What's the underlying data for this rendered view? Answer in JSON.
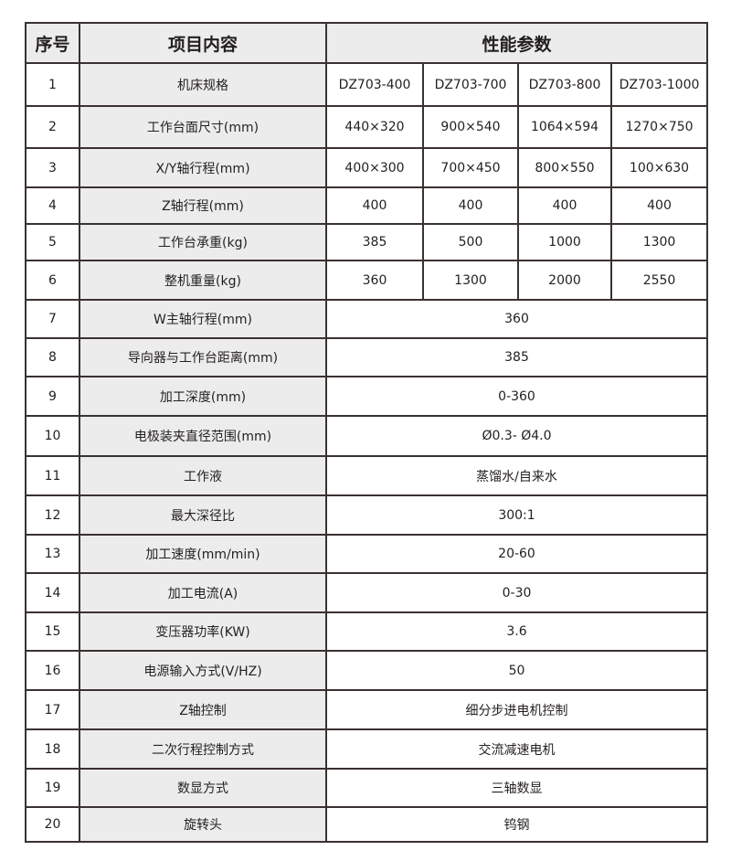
{
  "header": {
    "index": "序号",
    "item": "项目内容",
    "spec": "性能参数"
  },
  "rows": [
    {
      "no": "1",
      "item": "机床规格",
      "values": [
        "DZ703-400",
        "DZ703-700",
        "DZ703-800",
        "DZ703-1000"
      ]
    },
    {
      "no": "2",
      "item": "工作台面尺寸(mm)",
      "values": [
        "440×320",
        "900×540",
        "1064×594",
        "1270×750"
      ]
    },
    {
      "no": "3",
      "item": "X/Y轴行程(mm)",
      "values": [
        "400×300",
        "700×450",
        "800×550",
        "100×630"
      ]
    },
    {
      "no": "4",
      "item": "Z轴行程(mm)",
      "values": [
        "400",
        "400",
        "400",
        "400"
      ]
    },
    {
      "no": "5",
      "item": "工作台承重(kg)",
      "values": [
        "385",
        "500",
        "1000",
        "1300"
      ]
    },
    {
      "no": "6",
      "item": "整机重量(kg)",
      "values": [
        "360",
        "1300",
        "2000",
        "2550"
      ]
    },
    {
      "no": "7",
      "item": "W主轴行程(mm)",
      "value": "360"
    },
    {
      "no": "8",
      "item": "导向器与工作台距离(mm)",
      "value": "385"
    },
    {
      "no": "9",
      "item": "加工深度(mm)",
      "value": "0-360"
    },
    {
      "no": "10",
      "item": "电极装夹直径范围(mm)",
      "value": "Ø0.3- Ø4.0"
    },
    {
      "no": "11",
      "item": "工作液",
      "value": "蒸馏水/自来水"
    },
    {
      "no": "12",
      "item": "最大深径比",
      "value": "300:1"
    },
    {
      "no": "13",
      "item": "加工速度(mm/min)",
      "value": "20-60"
    },
    {
      "no": "14",
      "item": "加工电流(A)",
      "value": "0-30"
    },
    {
      "no": "15",
      "item": "变压器功率(KW)",
      "value": "3.6"
    },
    {
      "no": "16",
      "item": "电源输入方式(V/HZ)",
      "value": "50"
    },
    {
      "no": "17",
      "item": "Z轴控制",
      "value": "细分步进电机控制"
    },
    {
      "no": "18",
      "item": "二次行程控制方式",
      "value": "交流减速电机"
    },
    {
      "no": "19",
      "item": "数显方式",
      "value": "三轴数显"
    },
    {
      "no": "20",
      "item": "旋转头",
      "value": "钨钢"
    }
  ]
}
